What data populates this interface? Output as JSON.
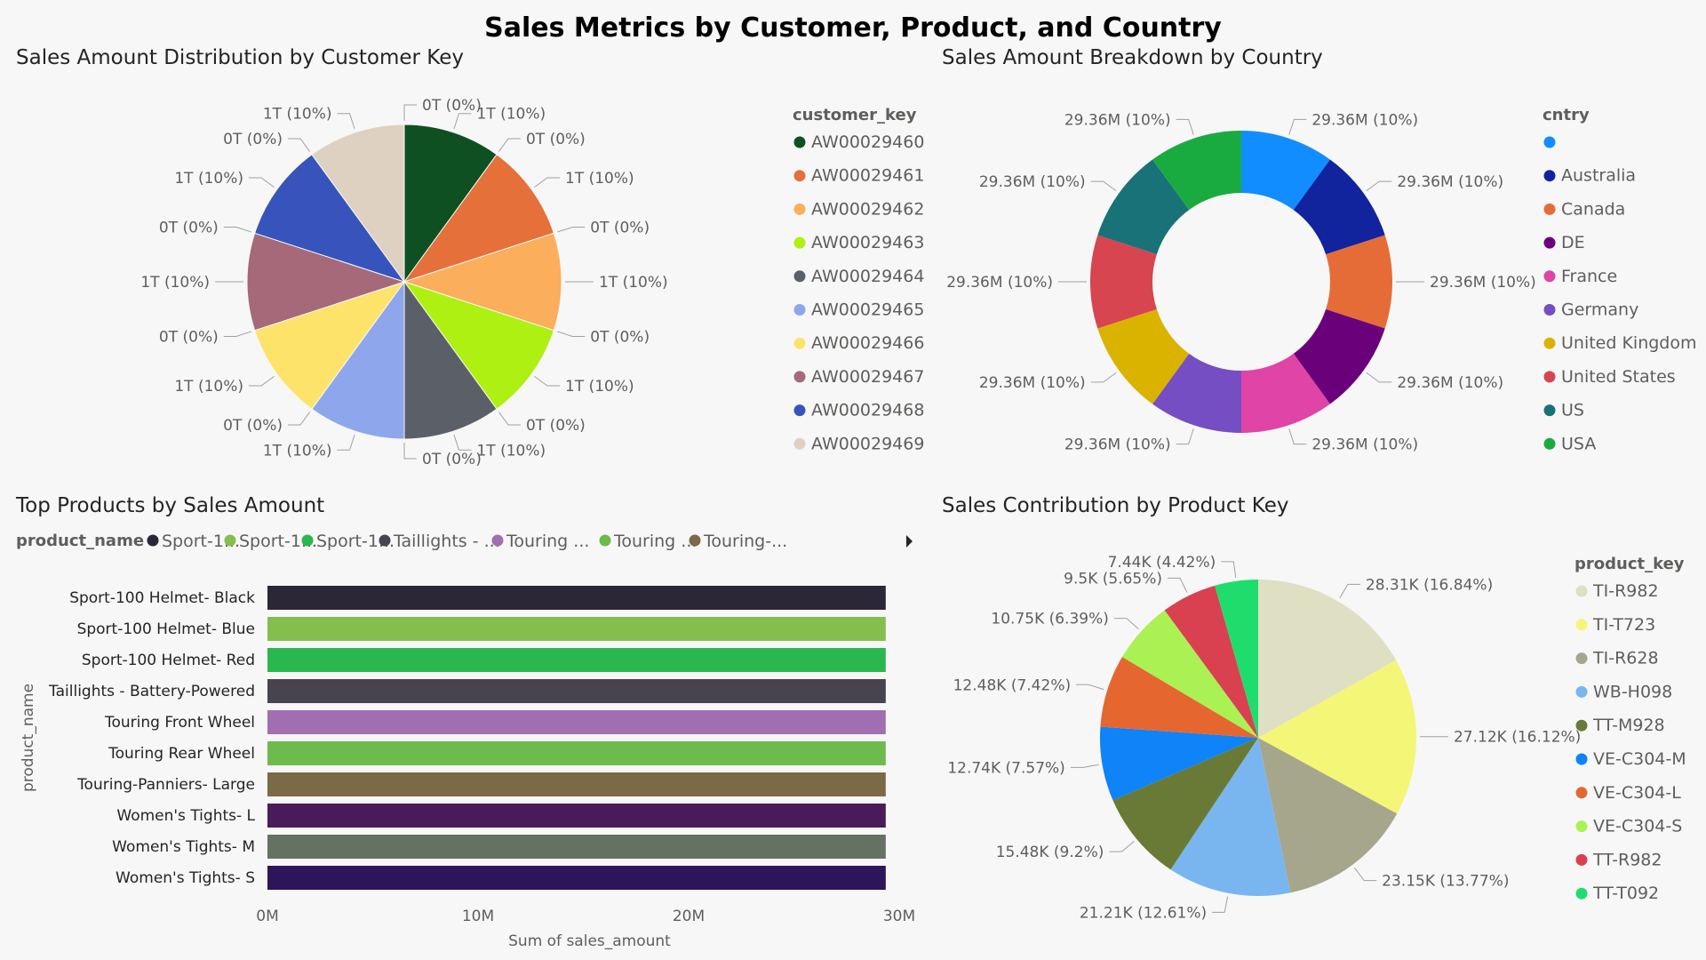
{
  "title": "Sales Metrics by Customer, Product, and Country",
  "chart_data": [
    {
      "type": "pie",
      "title": "Sales Amount Distribution by Customer Key",
      "legend_title": "customer_key",
      "legend_position": "right",
      "categories": [
        "AW00029460",
        "AW00029461",
        "AW00029462",
        "AW00029463",
        "AW00029464",
        "AW00029465",
        "AW00029466",
        "AW00029467",
        "AW00029468",
        "AW00029469"
      ],
      "colors": [
        "#0f5023",
        "#e5703a",
        "#fbae5c",
        "#aef012",
        "#5b5f68",
        "#8ea6ec",
        "#fde36a",
        "#a5697a",
        "#3654bc",
        "#ded1c1"
      ],
      "values": [
        1,
        1,
        1,
        1,
        1,
        1,
        1,
        1,
        1,
        1
      ],
      "slice_labels": [
        "1T (10%)",
        "1T (10%)",
        "1T (10%)",
        "1T (10%)",
        "1T (10%)",
        "1T (10%)",
        "1T (10%)",
        "1T (10%)",
        "1T (10%)",
        "1T (10%)"
      ],
      "zero_labels": [
        "0T (0%)",
        "0T (0%)",
        "0T (0%)",
        "0T (0%)",
        "0T (0%)",
        "0T (0%)",
        "0T (0%)",
        "0T (0%)",
        "0T (0%)",
        "0T (0%)"
      ]
    },
    {
      "type": "pie",
      "subtype": "donut",
      "title": "Sales Amount Breakdown by Country",
      "legend_title": "cntry",
      "legend_position": "right",
      "legend": [
        {
          "name": "",
          "color": "#118dff"
        },
        {
          "name": "Australia",
          "color": "#12239e"
        },
        {
          "name": "Canada",
          "color": "#e66c37"
        },
        {
          "name": "DE",
          "color": "#6b007b"
        },
        {
          "name": "France",
          "color": "#e044a7"
        },
        {
          "name": "Germany",
          "color": "#744ec2"
        },
        {
          "name": "United Kingdom",
          "color": "#d9b300"
        },
        {
          "name": "United States",
          "color": "#d64550"
        },
        {
          "name": "US",
          "color": "#197278"
        },
        {
          "name": "USA",
          "color": "#1aab40"
        }
      ],
      "slices": [
        {
          "color": "#118dff",
          "value": 29.36,
          "label": "29.36M (10%)"
        },
        {
          "color": "#12239e",
          "value": 29.36,
          "label": "29.36M (10%)"
        },
        {
          "color": "#e66c37",
          "value": 29.36,
          "label": "29.36M (10%)"
        },
        {
          "color": "#6b007b",
          "value": 29.36,
          "label": "29.36M (10%)"
        },
        {
          "color": "#e044a7",
          "value": 29.36,
          "label": "29.36M (10%)"
        },
        {
          "color": "#744ec2",
          "value": 29.36,
          "label": "29.36M (10%)"
        },
        {
          "color": "#d9b300",
          "value": 29.36,
          "label": "29.36M (10%)"
        },
        {
          "color": "#d64550",
          "value": 29.36,
          "label": "29.36M (10%)"
        },
        {
          "color": "#197278",
          "value": 29.36,
          "label": "29.36M (10%)"
        },
        {
          "color": "#1aab40",
          "value": 29.36,
          "label": "29.36M (10%)"
        }
      ]
    },
    {
      "type": "bar",
      "orientation": "horizontal",
      "title": "Top Products by Sales Amount",
      "legend_title": "product_name",
      "legend_position": "top",
      "legend": [
        {
          "name": "Sport-1...",
          "color": "#2b2737"
        },
        {
          "name": "Sport-1...",
          "color": "#84be4f"
        },
        {
          "name": "Sport-1...",
          "color": "#2ab84e"
        },
        {
          "name": "Taillights - ...",
          "color": "#47434f"
        },
        {
          "name": "Touring ...",
          "color": "#a26eb2"
        },
        {
          "name": "Touring ...",
          "color": "#6cbb4c"
        },
        {
          "name": "Touring-...",
          "color": "#7b6a47"
        }
      ],
      "categories": [
        "Sport-100 Helmet- Black",
        "Sport-100 Helmet- Blue",
        "Sport-100 Helmet- Red",
        "Taillights - Battery-Powered",
        "Touring Front Wheel",
        "Touring Rear Wheel",
        "Touring-Panniers- Large",
        "Women's Tights- L",
        "Women's Tights- M",
        "Women's Tights- S"
      ],
      "colors": [
        "#2b2737",
        "#84be4f",
        "#2ab84e",
        "#47434f",
        "#a26eb2",
        "#6cbb4c",
        "#7b6a47",
        "#4a1b59",
        "#647163",
        "#2d1559"
      ],
      "values": [
        29.36,
        29.36,
        29.36,
        29.36,
        29.36,
        29.36,
        29.36,
        29.36,
        29.36,
        29.36
      ],
      "xlabel": "Sum of sales_amount",
      "ylabel": "product_name",
      "xlim": [
        0,
        30
      ],
      "xticks": [
        "0M",
        "10M",
        "20M",
        "30M"
      ]
    },
    {
      "type": "pie",
      "title": "Sales Contribution by Product Key",
      "legend_title": "product_key",
      "legend_position": "right",
      "categories": [
        "TI-R982",
        "TI-T723",
        "TI-R628",
        "WB-H098",
        "TT-M928",
        "VE-C304-M",
        "VE-C304-L",
        "VE-C304-S",
        "TT-R982",
        "TT-T092"
      ],
      "colors": [
        "#dfdfc4",
        "#f4f677",
        "#a6a68c",
        "#79b6f0",
        "#697a36",
        "#0f83f8",
        "#e5672f",
        "#aaf154",
        "#d94150",
        "#1fdd6c"
      ],
      "values": [
        28.31,
        27.12,
        23.15,
        21.21,
        15.48,
        12.74,
        12.48,
        10.75,
        9.5,
        7.44
      ],
      "slice_labels": [
        "28.31K (16.84%)",
        "27.12K (16.12%)",
        "23.15K (13.77%)",
        "21.21K (12.61%)",
        "15.48K (9.2%)",
        "12.74K (7.57%)",
        "12.48K (7.42%)",
        "10.75K (6.39%)",
        "9.5K (5.65%)",
        "7.44K (4.42%)"
      ]
    }
  ]
}
